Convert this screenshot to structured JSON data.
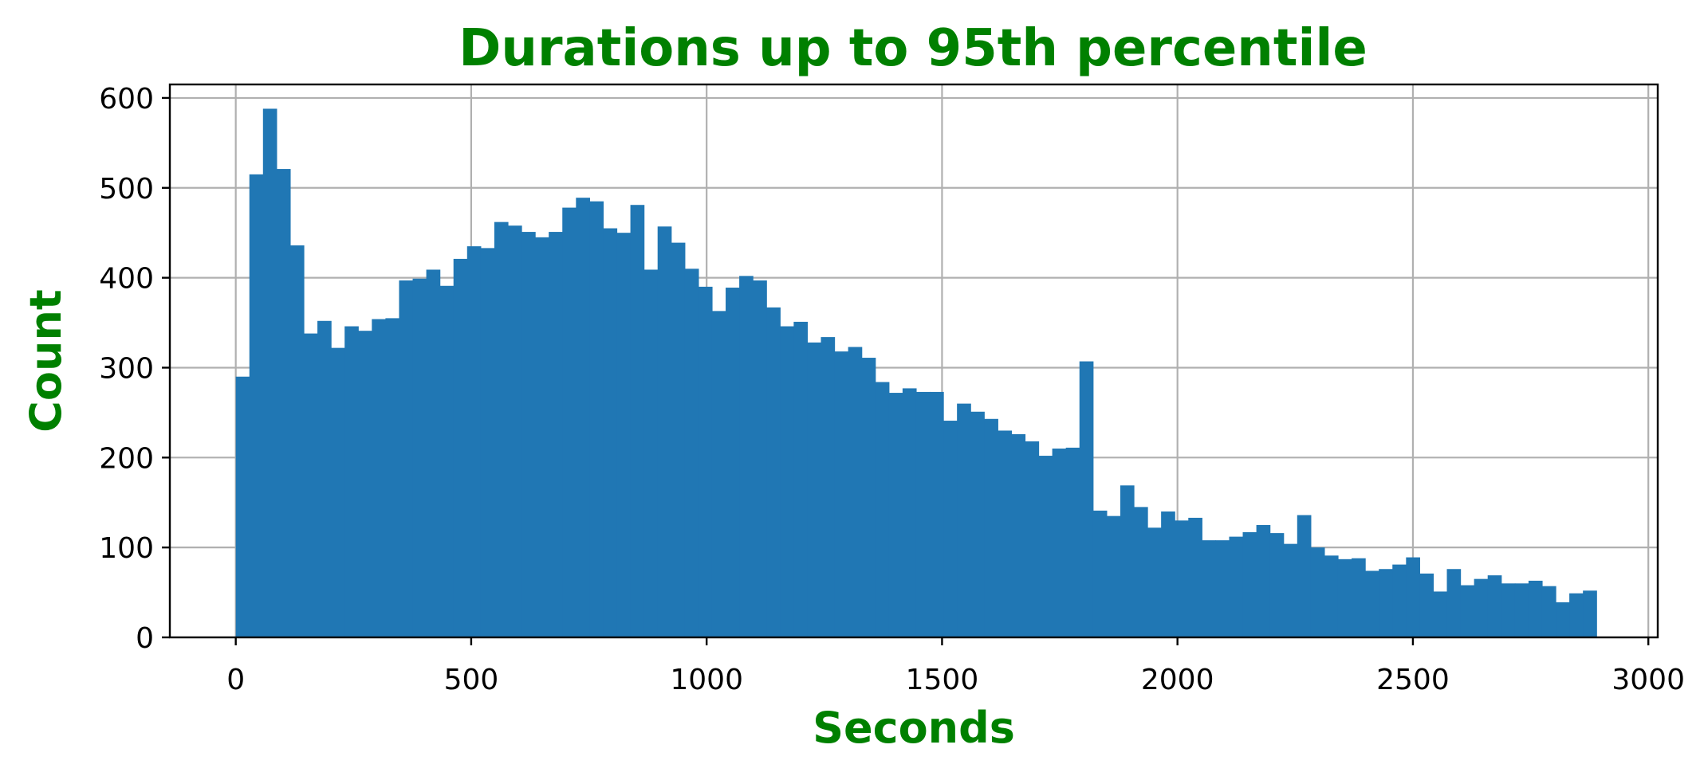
{
  "chart_data": {
    "type": "bar",
    "title": "Durations up to 95th percentile",
    "xlabel": "Seconds",
    "ylabel": "Count",
    "xlim": [
      -140,
      3020
    ],
    "ylim": [
      0,
      615
    ],
    "xticks": [
      0,
      500,
      1000,
      1500,
      2000,
      2500,
      3000
    ],
    "yticks": [
      0,
      100,
      200,
      300,
      400,
      500,
      600
    ],
    "grid": true,
    "bin_start": 0,
    "bin_width": 28.9,
    "values": [
      290,
      515,
      588,
      521,
      436,
      338,
      352,
      322,
      346,
      341,
      354,
      355,
      397,
      399,
      409,
      391,
      421,
      435,
      433,
      462,
      458,
      451,
      445,
      451,
      478,
      489,
      485,
      455,
      450,
      481,
      409,
      457,
      439,
      410,
      390,
      363,
      389,
      402,
      397,
      367,
      346,
      351,
      328,
      334,
      318,
      323,
      311,
      284,
      272,
      277,
      273,
      273,
      241,
      260,
      251,
      243,
      230,
      226,
      218,
      202,
      210,
      211,
      307,
      141,
      135,
      169,
      145,
      122,
      140,
      130,
      133,
      108,
      108,
      112,
      117,
      125,
      116,
      104,
      136,
      100,
      91,
      87,
      88,
      74,
      76,
      81,
      89,
      71,
      51,
      76,
      58,
      65,
      69,
      60,
      60,
      63,
      57,
      39,
      49,
      52
    ],
    "colors": {
      "bar": "#2077b4",
      "title": "#008000",
      "axis_label": "#008000"
    }
  }
}
